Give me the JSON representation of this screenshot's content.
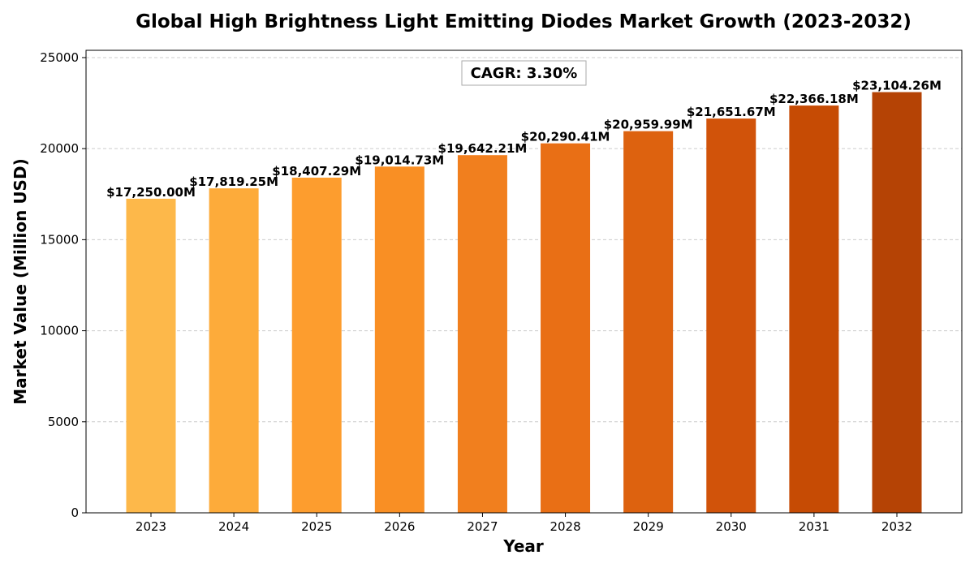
{
  "chart_data": {
    "type": "bar",
    "title": "Global High Brightness Light Emitting Diodes Market Growth (2023-2032)",
    "xlabel": "Year",
    "ylabel": "Market Value (Million USD)",
    "categories": [
      "2023",
      "2024",
      "2025",
      "2026",
      "2027",
      "2028",
      "2029",
      "2030",
      "2031",
      "2032"
    ],
    "values": [
      17250.0,
      17819.25,
      18407.29,
      19014.73,
      19642.21,
      20290.41,
      20959.99,
      21651.67,
      22366.18,
      23104.26
    ],
    "data_labels": [
      "$17,250.00M",
      "$17,819.25M",
      "$18,407.29M",
      "$19,014.73M",
      "$19,642.21M",
      "$20,290.41M",
      "$20,959.99M",
      "$21,651.67M",
      "$22,366.18M",
      "$23,104.26M"
    ],
    "colors": [
      "#fdb84a",
      "#fdab3a",
      "#fd9d2e",
      "#f98f24",
      "#f17f1e",
      "#e96f15",
      "#dd620f",
      "#d1530a",
      "#c64b04",
      "#b54305"
    ],
    "ylim": [
      0,
      25400
    ],
    "yticks": [
      0,
      5000,
      10000,
      15000,
      20000,
      25000
    ],
    "ytick_labels": [
      "0",
      "5000",
      "10000",
      "15000",
      "20000",
      "25000"
    ],
    "grid": true,
    "annotation": "CAGR: 3.30%"
  }
}
